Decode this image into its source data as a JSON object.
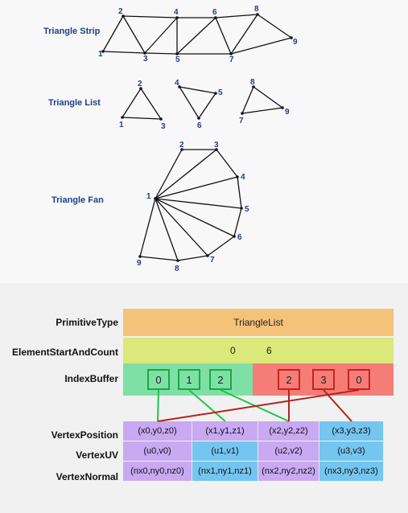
{
  "topology": {
    "strip": {
      "label": "Triangle Strip",
      "vertices": [
        "1",
        "2",
        "3",
        "4",
        "5",
        "6",
        "7",
        "8",
        "9"
      ]
    },
    "list": {
      "label": "Triangle List",
      "vertices": [
        "1",
        "2",
        "3",
        "4",
        "5",
        "6",
        "7",
        "8",
        "9"
      ]
    },
    "fan": {
      "label": "Triangle Fan",
      "vertices": [
        "1",
        "2",
        "3",
        "4",
        "5",
        "6",
        "7",
        "8",
        "9"
      ]
    }
  },
  "buffers": {
    "primitive_type": {
      "label": "PrimitiveType",
      "value": "TriangleList"
    },
    "element_start_and_count": {
      "label": "ElementStartAndCount",
      "start": "0",
      "count": "6"
    },
    "index_buffer": {
      "label": "IndexBuffer",
      "indices": [
        "0",
        "1",
        "2",
        "2",
        "3",
        "0"
      ]
    },
    "vertex_position": {
      "label": "VertexPosition",
      "cells": [
        "(x0,y0,z0)",
        "(x1,y1,z1)",
        "(x2,y2,z2)",
        "(x3,y3,z3)"
      ]
    },
    "vertex_uv": {
      "label": "VertexUV",
      "cells": [
        "(u0,v0)",
        "(u1,v1)",
        "(u2,v2)",
        "(u3,v3)"
      ]
    },
    "vertex_normal": {
      "label": "VertexNormal",
      "cells": [
        "(nx0,ny0,nz0)",
        "(nx1,ny1,nz1)",
        "(nx2,ny2,nz2)",
        "(nx3,ny3,nz3)"
      ]
    }
  },
  "colors": {
    "primitive_band": "#f5c27a",
    "element_band": "#dbe87a",
    "index_green_band": "#7fe0a6",
    "index_red_band": "#f47d78",
    "index_green_border": "#1aa64a",
    "index_red_border": "#c8231f",
    "vertex_cell": "#c8a9f2",
    "vertex_cell_alt": "#74c6f0",
    "green_line": "#27c14a",
    "red_line": "#b5231e",
    "triangle_stroke": "#111111",
    "diagram_label": "#1d3f8f"
  }
}
